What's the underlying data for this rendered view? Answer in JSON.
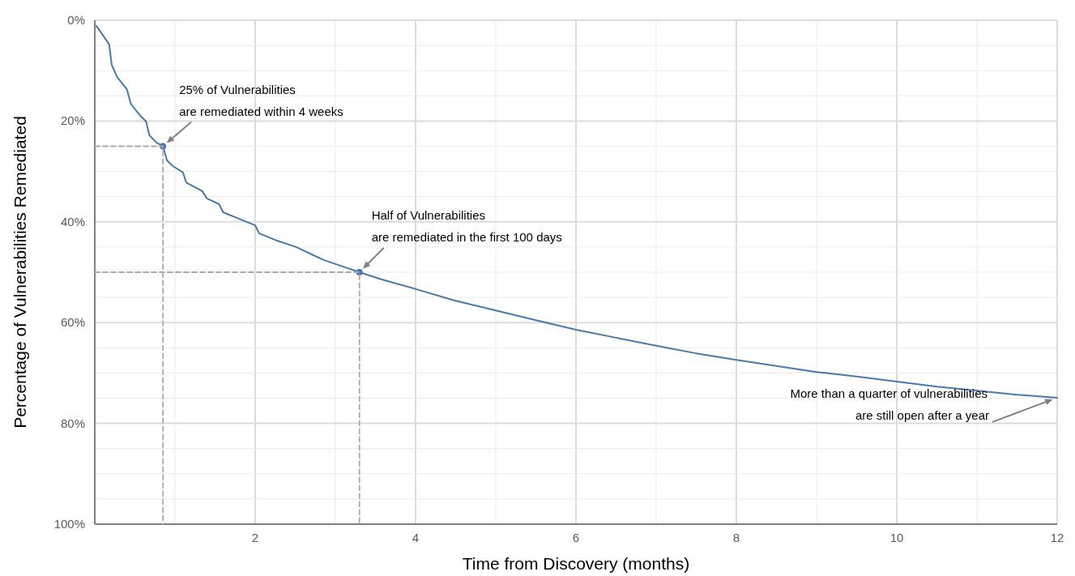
{
  "chart_data": {
    "type": "line",
    "xlabel": "Time from Discovery (months)",
    "ylabel": "Percentage of Vulnerabilities Remediated",
    "xlim": [
      0,
      12
    ],
    "ylim": [
      100,
      0
    ],
    "xticks": [
      {
        "value": 0,
        "label": null
      },
      {
        "value": 1,
        "label": null
      },
      2,
      {
        "value": 3,
        "label": null
      },
      4,
      {
        "value": 5,
        "label": null
      },
      6,
      {
        "value": 7,
        "label": null
      },
      8,
      {
        "value": 9,
        "label": null
      },
      10,
      {
        "value": 11,
        "label": null
      },
      12
    ],
    "yticks": [
      {
        "value": 0,
        "label": "0%"
      },
      {
        "value": 5,
        "label": null
      },
      {
        "value": 10,
        "label": null
      },
      {
        "value": 15,
        "label": null
      },
      {
        "value": 20,
        "label": "20%"
      },
      {
        "value": 25,
        "label": null
      },
      {
        "value": 30,
        "label": null
      },
      {
        "value": 35,
        "label": null
      },
      {
        "value": 40,
        "label": "40%"
      },
      {
        "value": 45,
        "label": null
      },
      {
        "value": 50,
        "label": null
      },
      {
        "value": 55,
        "label": null
      },
      {
        "value": 60,
        "label": "60%"
      },
      {
        "value": 65,
        "label": null
      },
      {
        "value": 70,
        "label": null
      },
      {
        "value": 75,
        "label": null
      },
      {
        "value": 80,
        "label": "80%"
      },
      {
        "value": 85,
        "label": null
      },
      {
        "value": 90,
        "label": null
      },
      {
        "value": 95,
        "label": null
      },
      {
        "value": 100,
        "label": "100%"
      }
    ],
    "grid": true,
    "marker": "none",
    "line_style": "solid",
    "series": [
      {
        "type": "line",
        "color": "#4a78a8",
        "x": [
          0.02,
          0.18,
          0.21,
          0.28,
          0.4,
          0.45,
          0.56,
          0.64,
          0.68,
          0.77,
          0.85,
          0.9,
          0.97,
          1.1,
          1.14,
          1.34,
          1.4,
          1.55,
          1.6,
          1.8,
          2.0,
          2.05,
          2.25,
          2.51,
          2.71,
          2.86,
          3.06,
          3.3,
          3.57,
          3.97,
          4.48,
          5.0,
          5.49,
          6.0,
          6.5,
          7.0,
          7.5,
          8.0,
          8.5,
          9.0,
          9.5,
          10.0,
          10.5,
          11.0,
          11.5,
          12.0
        ],
        "values": [
          1.1,
          4.8,
          8.8,
          11.3,
          13.7,
          16.6,
          18.8,
          20.1,
          22.8,
          24.3,
          25,
          27.8,
          28.9,
          30.2,
          32.2,
          33.9,
          35.4,
          36.5,
          38.1,
          39.4,
          40.7,
          42.3,
          43.6,
          45.0,
          46.5,
          47.6,
          48.7,
          50,
          51.4,
          53.2,
          55.6,
          57.6,
          59.5,
          61.4,
          63.0,
          64.6,
          66.1,
          67.4,
          68.6,
          69.8,
          70.7,
          71.7,
          72.7,
          73.5,
          74.3,
          74.9
        ]
      },
      {
        "type": "scatter",
        "color": "#4a78a8",
        "marker": "circle",
        "x": [
          0.85,
          3.3
        ],
        "values": [
          25,
          50
        ]
      },
      {
        "type": "line",
        "color": "#aaaaaa",
        "line_style": "dashed",
        "x": [
          0,
          0.85,
          0.85
        ],
        "values": [
          25,
          25,
          100
        ]
      },
      {
        "type": "line",
        "color": "#aaaaaa",
        "line_style": "dashed",
        "x": [
          0,
          3.3,
          3.3
        ],
        "values": [
          50,
          50,
          100
        ]
      }
    ],
    "annotations": [
      {
        "text": "25% of Vulnerabilities\nare remediated within 4 weeks",
        "x": 0.85,
        "y": 25
      },
      {
        "text": "Half of Vulnerabilities\nare remediated in the first 100 days",
        "x": 3.3,
        "y": 50
      },
      "More than a quarter of vulnerabilities\nare still open after a year"
    ]
  }
}
